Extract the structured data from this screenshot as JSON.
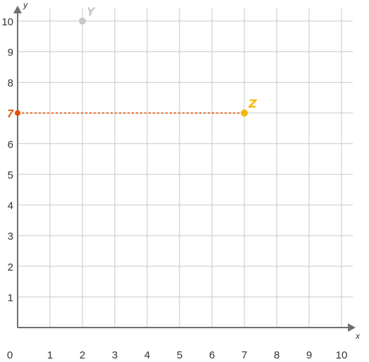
{
  "chart_data": {
    "type": "scatter",
    "title": "",
    "xlabel": "x",
    "ylabel": "y",
    "xlim": [
      0,
      10
    ],
    "ylim": [
      0,
      10
    ],
    "x_ticks": [
      "0",
      "1",
      "2",
      "3",
      "4",
      "5",
      "6",
      "7",
      "8",
      "9",
      "10"
    ],
    "y_ticks": [
      "1",
      "2",
      "3",
      "4",
      "5",
      "6",
      "7",
      "8",
      "9",
      "10"
    ],
    "grid": true,
    "points": [
      {
        "name": "Y",
        "x": 2,
        "y": 10,
        "color": "#c8c8c8"
      },
      {
        "name": "Z",
        "x": 7,
        "y": 7,
        "color": "#f5b800"
      }
    ],
    "projection": {
      "from_point": "Z",
      "to_axis": "y",
      "value": 7,
      "label": "7",
      "color": "#e65100",
      "style": "dashed"
    },
    "colors": {
      "grid": "#c8c8c8",
      "axis": "#707070",
      "text": "#333333"
    }
  }
}
